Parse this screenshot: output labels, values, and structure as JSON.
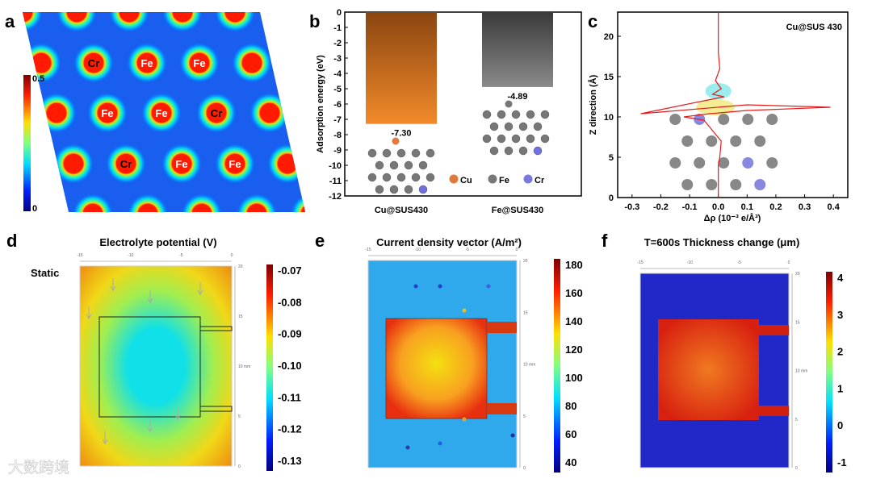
{
  "panels": {
    "a": {
      "letter": "a",
      "colorbar": {
        "max": "0.5",
        "min": "0"
      },
      "atoms": [
        {
          "label": "Cr"
        },
        {
          "label": "Fe"
        },
        {
          "label": "Fe"
        },
        {
          "label": "Fe"
        },
        {
          "label": "Fe"
        },
        {
          "label": "Cr"
        },
        {
          "label": "Cr"
        },
        {
          "label": "Fe"
        },
        {
          "label": "Fe"
        }
      ]
    },
    "b": {
      "letter": "b",
      "legend": [
        "Cu",
        "Fe",
        "Cr"
      ]
    },
    "c": {
      "letter": "c"
    },
    "d": {
      "letter": "d",
      "title": "Electrolyte potential (V)",
      "side_label": "Static",
      "colorbar": [
        "-0.07",
        "-0.08",
        "-0.09",
        "-0.10",
        "-0.11",
        "-0.12",
        "-0.13"
      ]
    },
    "e": {
      "letter": "e",
      "title": "Current density vector (A/m²)",
      "colorbar": [
        "180",
        "160",
        "140",
        "120",
        "100",
        "80",
        "60",
        "40"
      ]
    },
    "f": {
      "letter": "f",
      "title": "T=600s Thickness change (μm)",
      "colorbar": [
        "4",
        "3",
        "2",
        "1",
        "0",
        "-1"
      ]
    },
    "sim_axes": {
      "x_ticks": [
        "-15",
        "-10",
        "-5",
        "0"
      ],
      "y_ticks": [
        "20",
        "15",
        "10 mm",
        "5",
        "0"
      ],
      "unit": "mm"
    }
  },
  "watermark": "大数跨境",
  "chart_data": [
    {
      "type": "bar",
      "panel": "b",
      "categories": [
        "Cu@SUS430",
        "Fe@SUS430"
      ],
      "values": [
        -7.3,
        -4.89
      ],
      "data_labels": [
        "-7.30",
        "-4.89"
      ],
      "ylabel": "Adsorption energy (eV)",
      "ylim": [
        -12,
        0
      ],
      "yticks": [
        "0",
        "-1",
        "-2",
        "-3",
        "-4",
        "-5",
        "-6",
        "-7",
        "-8",
        "-9",
        "-10",
        "-11",
        "-12"
      ],
      "colors": [
        "#e67e22",
        "#666666"
      ]
    },
    {
      "type": "line",
      "panel": "c",
      "annotation": "Cu@SUS 430",
      "xlabel": "Δρ (10⁻³ e/Å³)",
      "ylabel": "Z direction (Å)",
      "xlim": [
        -0.35,
        0.45
      ],
      "ylim": [
        0,
        23
      ],
      "xticks": [
        "-0.3",
        "-0.2",
        "-0.1",
        "0.0",
        "0.1",
        "0.2",
        "0.3",
        "0.4"
      ],
      "yticks": [
        "0",
        "5",
        "10",
        "15",
        "20"
      ],
      "series": [
        {
          "name": "Δρ",
          "color": "#e41a1c",
          "x": [
            0,
            0,
            0.005,
            0.01,
            -0.05,
            -0.12,
            -0.03,
            0.1,
            0.39,
            0.1,
            -0.27,
            -0.05,
            0.02,
            -0.02,
            0.01,
            -0.01,
            0.005,
            0.0,
            0.0
          ],
          "y": [
            0,
            4,
            5,
            7,
            9.6,
            10.0,
            10.4,
            10.8,
            11.2,
            11.5,
            10.4,
            12.0,
            12.5,
            12.8,
            13.5,
            14.5,
            16,
            18,
            23
          ]
        }
      ]
    }
  ]
}
